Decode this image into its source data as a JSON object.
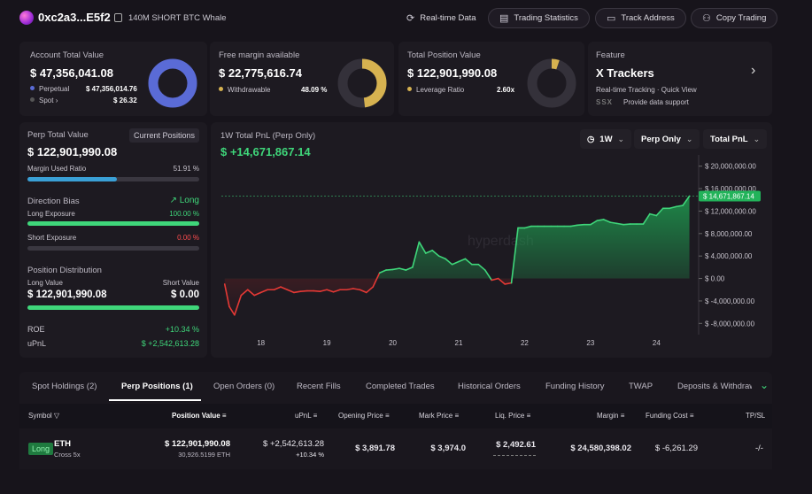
{
  "header": {
    "address": "0xc2a3...E5f2",
    "tagline": "140M SHORT BTC Whale",
    "buttons": [
      {
        "label": "Real-time Data",
        "icon": "refresh-icon"
      },
      {
        "label": "Trading Statistics",
        "icon": "chart-icon"
      },
      {
        "label": "Track Address",
        "icon": "monitor-icon"
      },
      {
        "label": "Copy Trading",
        "icon": "copy-trading-icon"
      }
    ]
  },
  "cards": {
    "account": {
      "title": "Account Total Value",
      "value": "$ 47,356,041.08",
      "rows": [
        {
          "label": "Perpetual",
          "value": "$ 47,356,014.76"
        },
        {
          "label": "Spot",
          "value": "$ 26.32"
        }
      ],
      "donut_fraction": 0.9999,
      "color": "#5a6bd6"
    },
    "margin": {
      "title": "Free margin available",
      "value": "$ 22,775,616.74",
      "row_label": "Withdrawable",
      "row_value": "48.09 %",
      "donut_fraction": 0.4809,
      "color": "#d6b250"
    },
    "position": {
      "title": "Total Position Value",
      "value": "$ 122,901,990.08",
      "row_label": "Leverage Ratio",
      "row_value": "2.60x",
      "donut_fraction": 0.052,
      "color": "#d6b250"
    },
    "feature": {
      "title": "Feature",
      "name": "X Trackers",
      "desc": "Real-time Tracking · Quick View",
      "support": "Provide data support",
      "logo_text": "SSX"
    }
  },
  "perp": {
    "title": "Perp Total Value",
    "badge": "Current Positions",
    "value": "$ 122,901,990.08",
    "margin_label": "Margin Used Ratio",
    "margin_value": "51.91 %",
    "margin_fraction": 0.5191,
    "bias_label": "Direction Bias",
    "bias_value": "Long",
    "long_label": "Long Exposure",
    "long_value": "100.00 %",
    "long_fraction": 1.0,
    "short_label": "Short Exposure",
    "short_value": "0.00 %",
    "short_fraction": 0.0,
    "dist_label": "Position Distribution",
    "long_val_label": "Long Value",
    "short_val_label": "Short Value",
    "long_val": "$ 122,901,990.08",
    "short_val": "$ 0.00",
    "dist_fraction": 1.0,
    "roe_label": "ROE",
    "roe_value": "+10.34 %",
    "upnl_label": "uPnL",
    "upnl_value": "$ +2,542,613.28"
  },
  "chart_panel": {
    "title": "1W Total PnL (Perp Only)",
    "value": "$ +14,671,867.14",
    "dropdowns": [
      "1W",
      "Perp Only",
      "Total PnL"
    ],
    "watermark": "hyperdash",
    "current_label": "$ 14,671,867.14"
  },
  "chart_data": {
    "type": "area",
    "x_ticks": [
      "18",
      "19",
      "20",
      "21",
      "22",
      "23",
      "24"
    ],
    "y_ticks": [
      "$ 20,000,000.00",
      "$ 16,000,000.00",
      "$ 12,000,000.00",
      "$ 8,000,000.00",
      "$ 4,000,000.00",
      "$ 0.00",
      "$ -4,000,000.00",
      "$ -8,000,000.00"
    ],
    "ylim": [
      -10000000,
      22000000
    ],
    "reference_value": 14671867.14,
    "series": [
      {
        "x": [
          17.45,
          17.52,
          17.6,
          17.7,
          17.8,
          17.9,
          18.0,
          18.1,
          18.2,
          18.3,
          18.4,
          18.5,
          18.6,
          18.7,
          18.8,
          18.9,
          19.0,
          19.1,
          19.2,
          19.3,
          19.4,
          19.5,
          19.6,
          19.7,
          19.8,
          19.9,
          20.0,
          20.1,
          20.2,
          20.3,
          20.4,
          20.5,
          20.6,
          20.7,
          20.8,
          20.9,
          21.0,
          21.1,
          21.2,
          21.3,
          21.4,
          21.5,
          21.6,
          21.7,
          21.8,
          21.9,
          22.0,
          22.1,
          22.2,
          22.3,
          22.4,
          22.5,
          22.6,
          22.7,
          22.8,
          22.9,
          23.0,
          23.1,
          23.2,
          23.3,
          23.4,
          23.5,
          23.6,
          23.7,
          23.8,
          23.9,
          24.0,
          24.1,
          24.2,
          24.3,
          24.4,
          24.5
        ],
        "y": [
          -1000000,
          -5000000,
          -6500000,
          -3000000,
          -2000000,
          -3000000,
          -2500000,
          -2000000,
          -2000000,
          -1500000,
          -2000000,
          -2500000,
          -2300000,
          -2200000,
          -2200000,
          -2300000,
          -2000000,
          -2400000,
          -2000000,
          -2000000,
          -1800000,
          -2000000,
          -2500000,
          -1500000,
          1000000,
          1500000,
          1600000,
          1800000,
          1500000,
          2000000,
          6500000,
          4500000,
          5000000,
          4000000,
          3500000,
          2500000,
          3000000,
          3500000,
          2500000,
          2500000,
          1500000,
          -300000,
          0,
          -1000000,
          -800000,
          9000000,
          9000000,
          9300000,
          9300000,
          9300000,
          9300000,
          9300000,
          9300000,
          9300000,
          9500000,
          9600000,
          9600000,
          10300000,
          10500000,
          10000000,
          9800000,
          9600000,
          9700000,
          9700000,
          9700000,
          11500000,
          11200000,
          12500000,
          12500000,
          12800000,
          13000000,
          14671867
        ]
      }
    ]
  },
  "tabs": [
    "Spot Holdings (2)",
    "Perp Positions (1)",
    "Open Orders (0)",
    "Recent Fills",
    "Completed Trades",
    "Historical Orders",
    "Funding History",
    "TWAP",
    "Deposits & Withdraw"
  ],
  "active_tab": 1,
  "table": {
    "headers": [
      "Symbol",
      "Position Value",
      "uPnL",
      "Opening Price",
      "Mark Price",
      "Liq. Price",
      "Margin",
      "Funding Cost",
      "TP/SL"
    ],
    "row": {
      "side": "Long",
      "coin": "ETH",
      "mode": "Cross 5x",
      "position_value": "$ 122,901,990.08",
      "position_size": "30,926.5199 ETH",
      "upnl": "$ +2,542,613.28",
      "upnl_pct": "+10.34 %",
      "opening_price": "$ 3,891.78",
      "mark_price": "$ 3,974.0",
      "liq_price": "$ 2,492.61",
      "margin": "$ 24,580,398.02",
      "funding_cost": "$ -6,261.29",
      "tpsl": "-/-"
    }
  },
  "colors": {
    "green": "#3fd67a",
    "red": "#ff4d4f",
    "blue": "#3aa0d6"
  }
}
